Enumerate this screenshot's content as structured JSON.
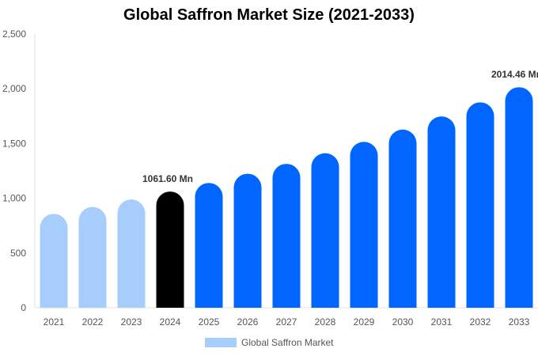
{
  "chart_data": {
    "type": "bar",
    "title": "Global Saffron Market Size (2021-2033)",
    "xlabel": "",
    "ylabel": "",
    "ylim": [
      0,
      2500
    ],
    "yticks": [
      "0",
      "500",
      "1,000",
      "1,500",
      "2,000",
      "2,500"
    ],
    "ytick_values": [
      0,
      500,
      1000,
      1500,
      2000,
      2500
    ],
    "grid": false,
    "categories": [
      "2021",
      "2022",
      "2023",
      "2024",
      "2025",
      "2026",
      "2027",
      "2028",
      "2029",
      "2030",
      "2031",
      "2032",
      "2033"
    ],
    "series": [
      {
        "name": "Global Saffron Market",
        "values": [
          857.4,
          920.7,
          988.6,
          1061.6,
          1140.0,
          1224.1,
          1314.4,
          1411.4,
          1515.5,
          1627.4,
          1747.4,
          1876.3,
          2014.46
        ]
      }
    ],
    "bar_colors": [
      "#a6cdfb",
      "#a6cdfb",
      "#a6cdfb",
      "#000000",
      "#0066ff",
      "#0066ff",
      "#0066ff",
      "#0066ff",
      "#0066ff",
      "#0066ff",
      "#0066ff",
      "#0066ff",
      "#0066ff"
    ],
    "annotations": [
      {
        "category": "2024",
        "text": "1061.60 Mn"
      },
      {
        "category": "2033",
        "text": "2014.46 Mn"
      }
    ],
    "legend": {
      "position": "bottom",
      "label": "Global Saffron Market",
      "color": "#a6cdfb"
    }
  }
}
